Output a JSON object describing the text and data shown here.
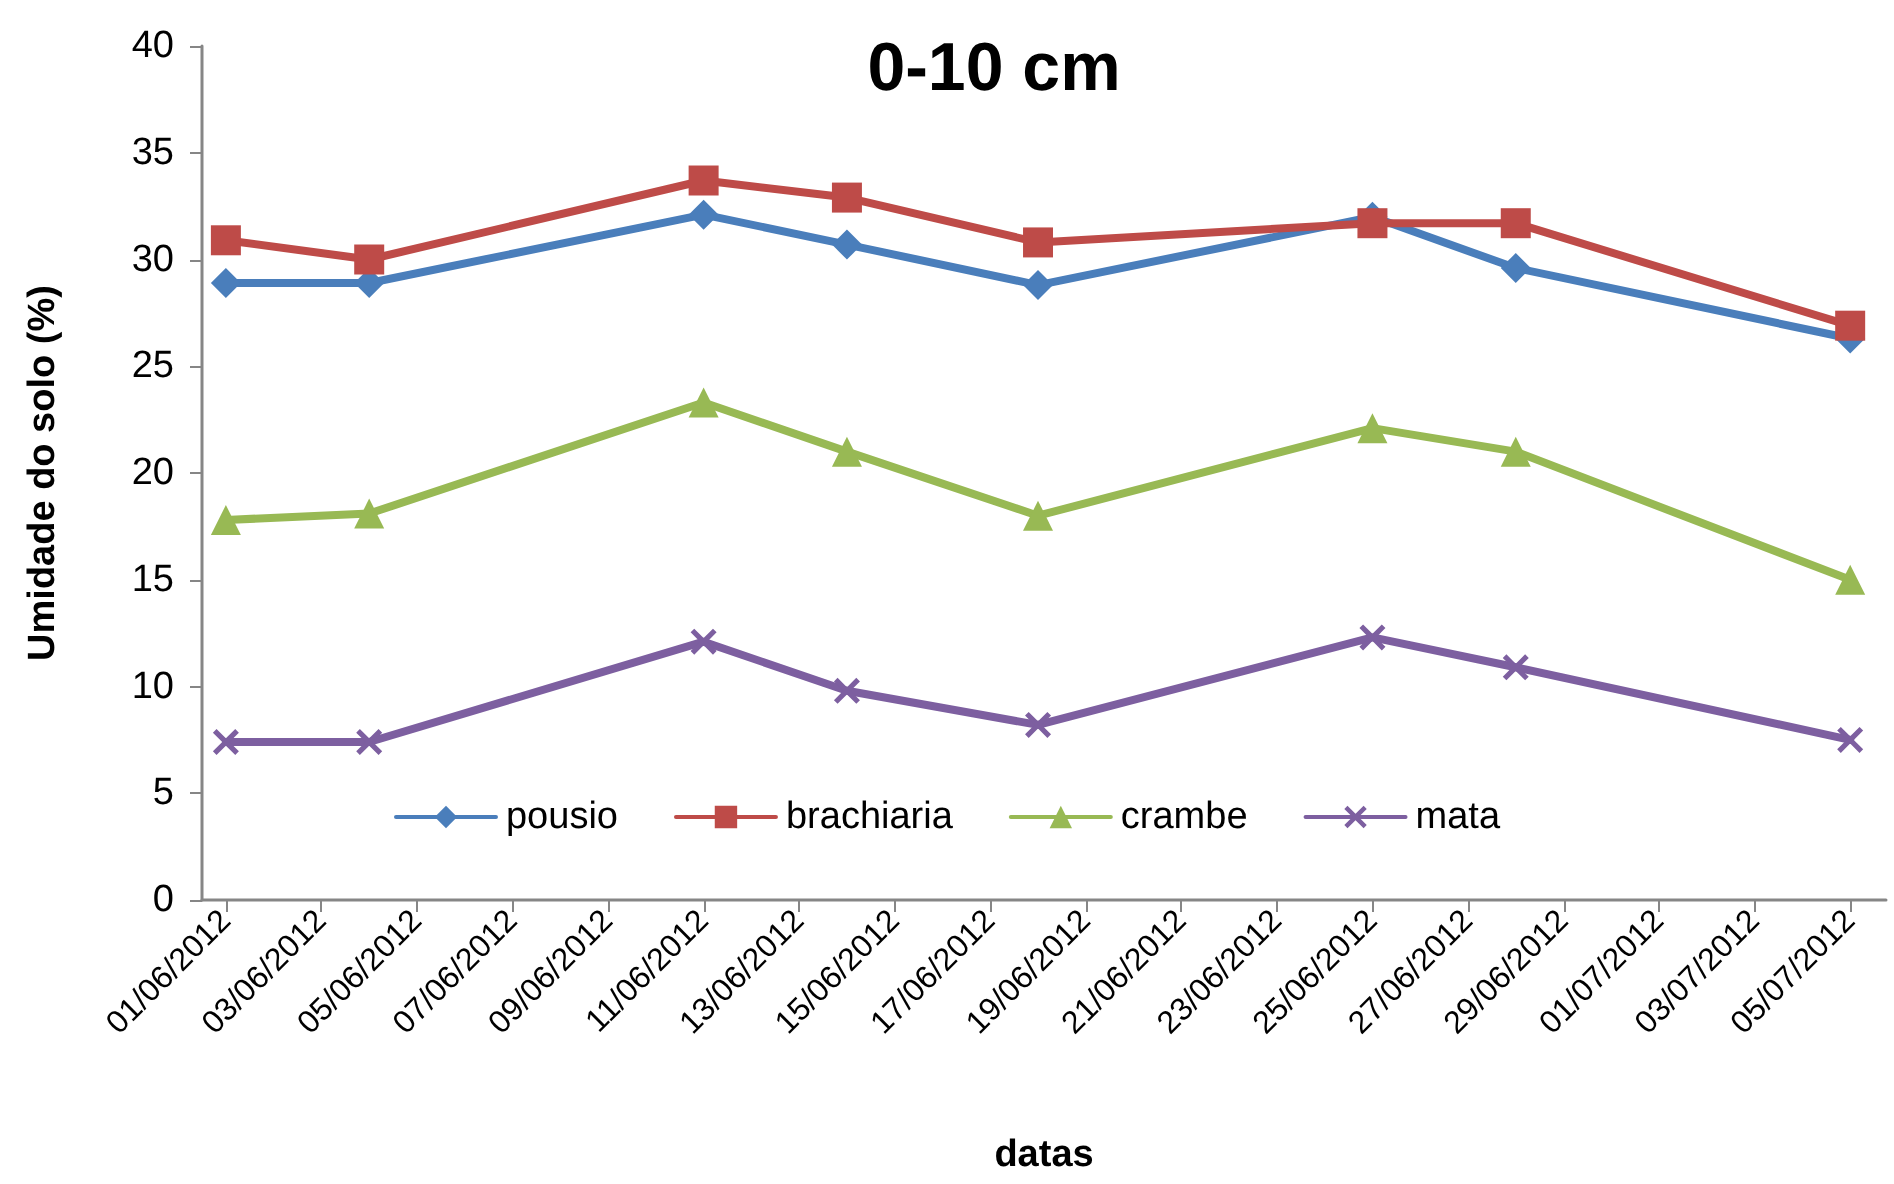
{
  "chart_data": {
    "type": "line",
    "title": "0-10 cm",
    "xlabel": "datas",
    "ylabel": "Umidade do solo (%)",
    "x": [
      "2012-06-01",
      "2012-06-04",
      "2012-06-11",
      "2012-06-14",
      "2012-06-18",
      "2012-06-25",
      "2012-06-28",
      "2012-07-05"
    ],
    "series": [
      {
        "name": "pousio",
        "color": "#4a7ebb",
        "marker": "diamond",
        "values": [
          28.9,
          28.9,
          32.1,
          30.7,
          28.8,
          32.0,
          29.6,
          26.3
        ]
      },
      {
        "name": "brachiaria",
        "color": "#be4b48",
        "marker": "square",
        "values": [
          30.9,
          30.0,
          33.7,
          32.9,
          30.8,
          31.7,
          31.7,
          26.9
        ]
      },
      {
        "name": "crambe",
        "color": "#98b954",
        "marker": "triangle",
        "values": [
          17.8,
          18.1,
          23.3,
          21.0,
          18.0,
          22.1,
          21.0,
          15.0
        ]
      },
      {
        "name": "mata",
        "color": "#7d5fa0",
        "marker": "cross",
        "values": [
          7.4,
          7.4,
          12.1,
          9.8,
          8.2,
          12.3,
          10.9,
          7.5
        ]
      }
    ],
    "xlim": [
      "2012-05-31T12:00",
      "2012-07-05T18:00"
    ],
    "xticks": [
      {
        "value": "2012-06-01",
        "label": "01/06/2012"
      },
      {
        "value": "2012-06-03",
        "label": "03/06/2012"
      },
      {
        "value": "2012-06-05",
        "label": "05/06/2012"
      },
      {
        "value": "2012-06-07",
        "label": "07/06/2012"
      },
      {
        "value": "2012-06-09",
        "label": "09/06/2012"
      },
      {
        "value": "2012-06-11",
        "label": "11/06/2012"
      },
      {
        "value": "2012-06-13",
        "label": "13/06/2012"
      },
      {
        "value": "2012-06-15",
        "label": "15/06/2012"
      },
      {
        "value": "2012-06-17",
        "label": "17/06/2012"
      },
      {
        "value": "2012-06-19",
        "label": "19/06/2012"
      },
      {
        "value": "2012-06-21",
        "label": "21/06/2012"
      },
      {
        "value": "2012-06-23",
        "label": "23/06/2012"
      },
      {
        "value": "2012-06-25",
        "label": "25/06/2012"
      },
      {
        "value": "2012-06-27",
        "label": "27/06/2012"
      },
      {
        "value": "2012-06-29",
        "label": "29/06/2012"
      },
      {
        "value": "2012-07-01",
        "label": "01/07/2012"
      },
      {
        "value": "2012-07-03",
        "label": "03/07/2012"
      },
      {
        "value": "2012-07-05",
        "label": "05/07/2012"
      }
    ],
    "ylim": [
      0,
      40
    ],
    "yticks": [
      0,
      5,
      10,
      15,
      20,
      25,
      30,
      35,
      40
    ],
    "grid": false,
    "legend": "bottom",
    "line_style": "solid"
  }
}
